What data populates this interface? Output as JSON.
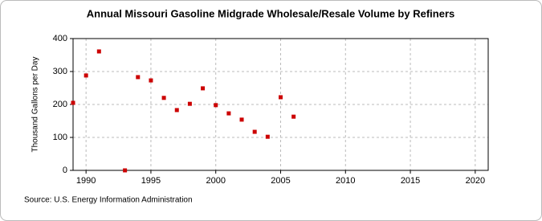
{
  "chart_data": {
    "type": "scatter",
    "title": "Annual Missouri Gasoline Midgrade Wholesale/Resale Volume by Refiners",
    "y_label": "Thousand Gallons per Day",
    "source": "Source: U.S. Energy Information Administration",
    "series": [
      {
        "name": "Volume",
        "color": "#cc0000",
        "x": [
          1989,
          1990,
          1991,
          1993,
          1994,
          1995,
          1996,
          1997,
          1998,
          1999,
          2000,
          2001,
          2002,
          2003,
          2004,
          2005,
          2006
        ],
        "values": [
          205,
          288,
          361,
          0,
          283,
          273,
          220,
          183,
          202,
          249,
          198,
          173,
          154,
          117,
          102,
          222,
          163
        ]
      }
    ],
    "xlim": [
      1989,
      2021
    ],
    "xticks": [
      1990,
      1995,
      2000,
      2005,
      2010,
      2015,
      2020
    ],
    "ylim": [
      0,
      400
    ],
    "yticks": [
      0,
      100,
      200,
      300,
      400
    ],
    "grid": true
  }
}
